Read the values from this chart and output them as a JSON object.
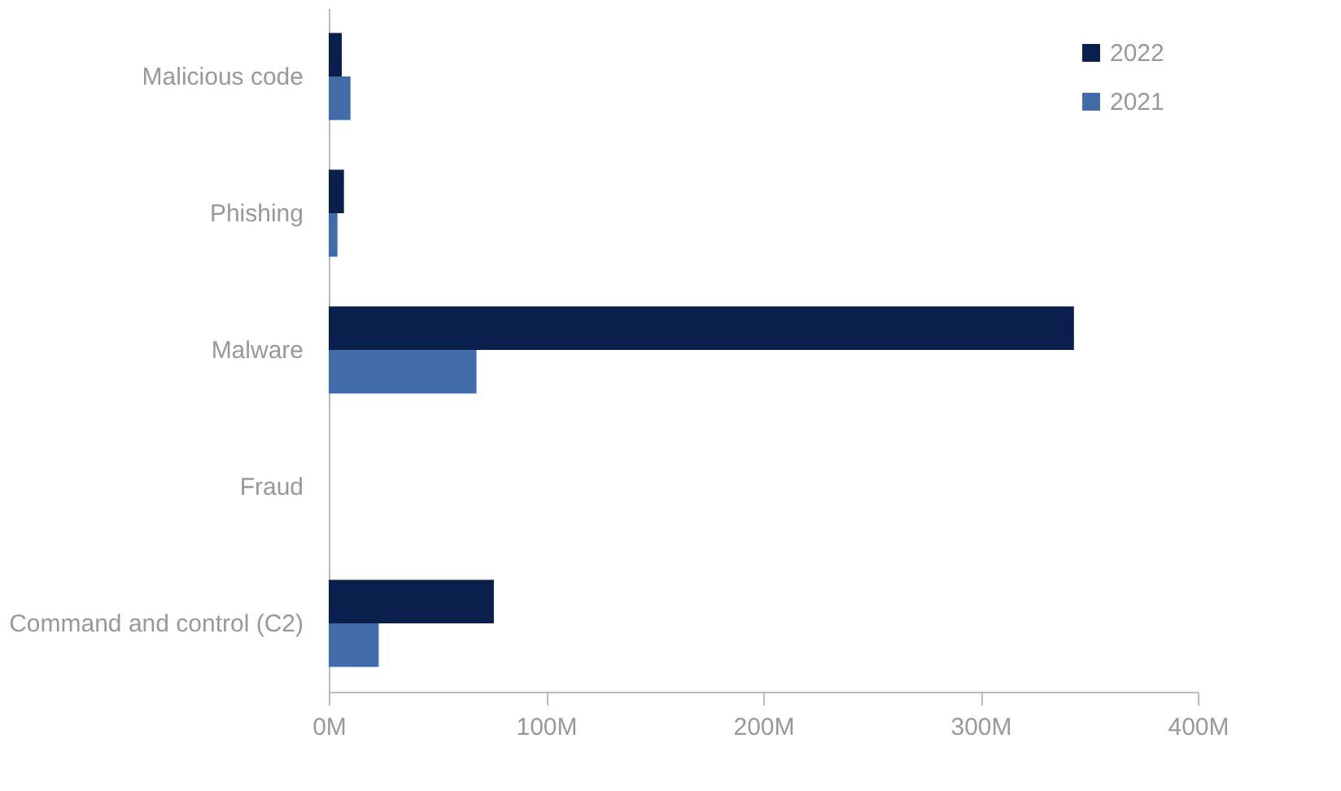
{
  "chart_data": {
    "type": "bar",
    "orientation": "horizontal",
    "categories": [
      "Malicious code",
      "Phishing",
      "Malware",
      "Fraud",
      "Command and control (C2)"
    ],
    "series": [
      {
        "name": "2022",
        "color": "#0a1f4c",
        "values": [
          6,
          7,
          343,
          0,
          76
        ]
      },
      {
        "name": "2021",
        "color": "#426ca8",
        "values": [
          10,
          4,
          68,
          0,
          23
        ]
      }
    ],
    "xlim": [
      0,
      400
    ],
    "xticks": [
      {
        "value": 0,
        "label": "0M"
      },
      {
        "value": 100,
        "label": "100M"
      },
      {
        "value": 200,
        "label": "200M"
      },
      {
        "value": 300,
        "label": "300M"
      },
      {
        "value": 400,
        "label": "400M"
      }
    ],
    "grid": false,
    "legend": "top right"
  }
}
